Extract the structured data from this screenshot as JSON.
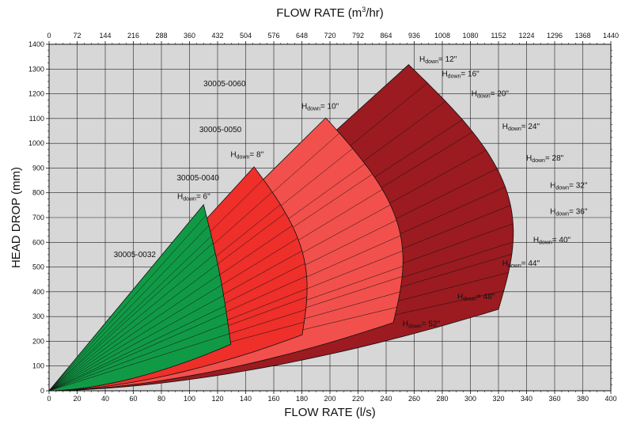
{
  "chart_data": {
    "type": "area",
    "title": "",
    "xlabel": "FLOW RATE (l/s)",
    "xlabel_top": {
      "prefix": "FLOW RATE (m",
      "sup": "3",
      "suffix": "/hr)"
    },
    "ylabel": "HEAD DROP (mm)",
    "xlim": [
      0,
      400
    ],
    "ylim": [
      0,
      1400
    ],
    "x_ticks": [
      "0",
      "20",
      "40",
      "60",
      "80",
      "100",
      "120",
      "140",
      "160",
      "180",
      "200",
      "220",
      "240",
      "260",
      "280",
      "300",
      "320",
      "340",
      "360",
      "380",
      "400"
    ],
    "x_ticks_top": [
      "0",
      "72",
      "144",
      "216",
      "288",
      "360",
      "432",
      "504",
      "576",
      "648",
      "720",
      "792",
      "864",
      "936",
      "1008",
      "1080",
      "1152",
      "1224",
      "1296",
      "1368",
      "1440"
    ],
    "y_ticks": [
      "0",
      "100",
      "200",
      "300",
      "400",
      "500",
      "600",
      "700",
      "800",
      "900",
      "1000",
      "1100",
      "1200",
      "1300",
      "1400"
    ],
    "grid": true,
    "series": [
      {
        "name": "30005-0060",
        "color": "#9b1b20",
        "apex": [
          256,
          1318
        ],
        "max_flow": 352,
        "label_pos": [
          125,
          1230
        ],
        "hdown": [
          {
            "label": "12\"",
            "x": 277,
            "y": 1330
          },
          {
            "label": "16\"",
            "x": 293,
            "y": 1270
          },
          {
            "label": "20\"",
            "x": 314,
            "y": 1190
          },
          {
            "label": "24\"",
            "x": 336,
            "y": 1058
          },
          {
            "label": "28\"",
            "x": 353,
            "y": 930
          },
          {
            "label": "32\"",
            "x": 370,
            "y": 820
          },
          {
            "label": "36\"",
            "x": 370,
            "y": 715
          },
          {
            "label": "40\"",
            "x": 358,
            "y": 600
          },
          {
            "label": "44\"",
            "x": 336,
            "y": 505
          },
          {
            "label": "48\"",
            "x": 304,
            "y": 370
          },
          {
            "label": "52\"",
            "x": 265,
            "y": 260
          }
        ]
      },
      {
        "name": "30005-0050",
        "color": "#f2504c",
        "apex": [
          197,
          1103
        ],
        "max_flow": 268,
        "label_pos": [
          122,
          1045
        ],
        "hdown": [
          {
            "label": "10\"",
            "x": 193,
            "y": 1140
          }
        ]
      },
      {
        "name": "30005-0040",
        "color": "#ee2f2a",
        "apex": [
          146,
          905
        ],
        "max_flow": 195,
        "label_pos": [
          106,
          850
        ],
        "hdown": [
          {
            "label": "8\"",
            "x": 141,
            "y": 945
          }
        ]
      },
      {
        "name": "30005-0032",
        "color": "#119a46",
        "apex": [
          110,
          752
        ],
        "max_flow": 131,
        "label_pos": [
          61,
          540
        ],
        "hdown": [
          {
            "label": "6\"",
            "x": 103,
            "y": 775
          }
        ]
      }
    ],
    "hdown_symbol": {
      "main": "H",
      "sub": "down",
      "eq": "="
    }
  }
}
